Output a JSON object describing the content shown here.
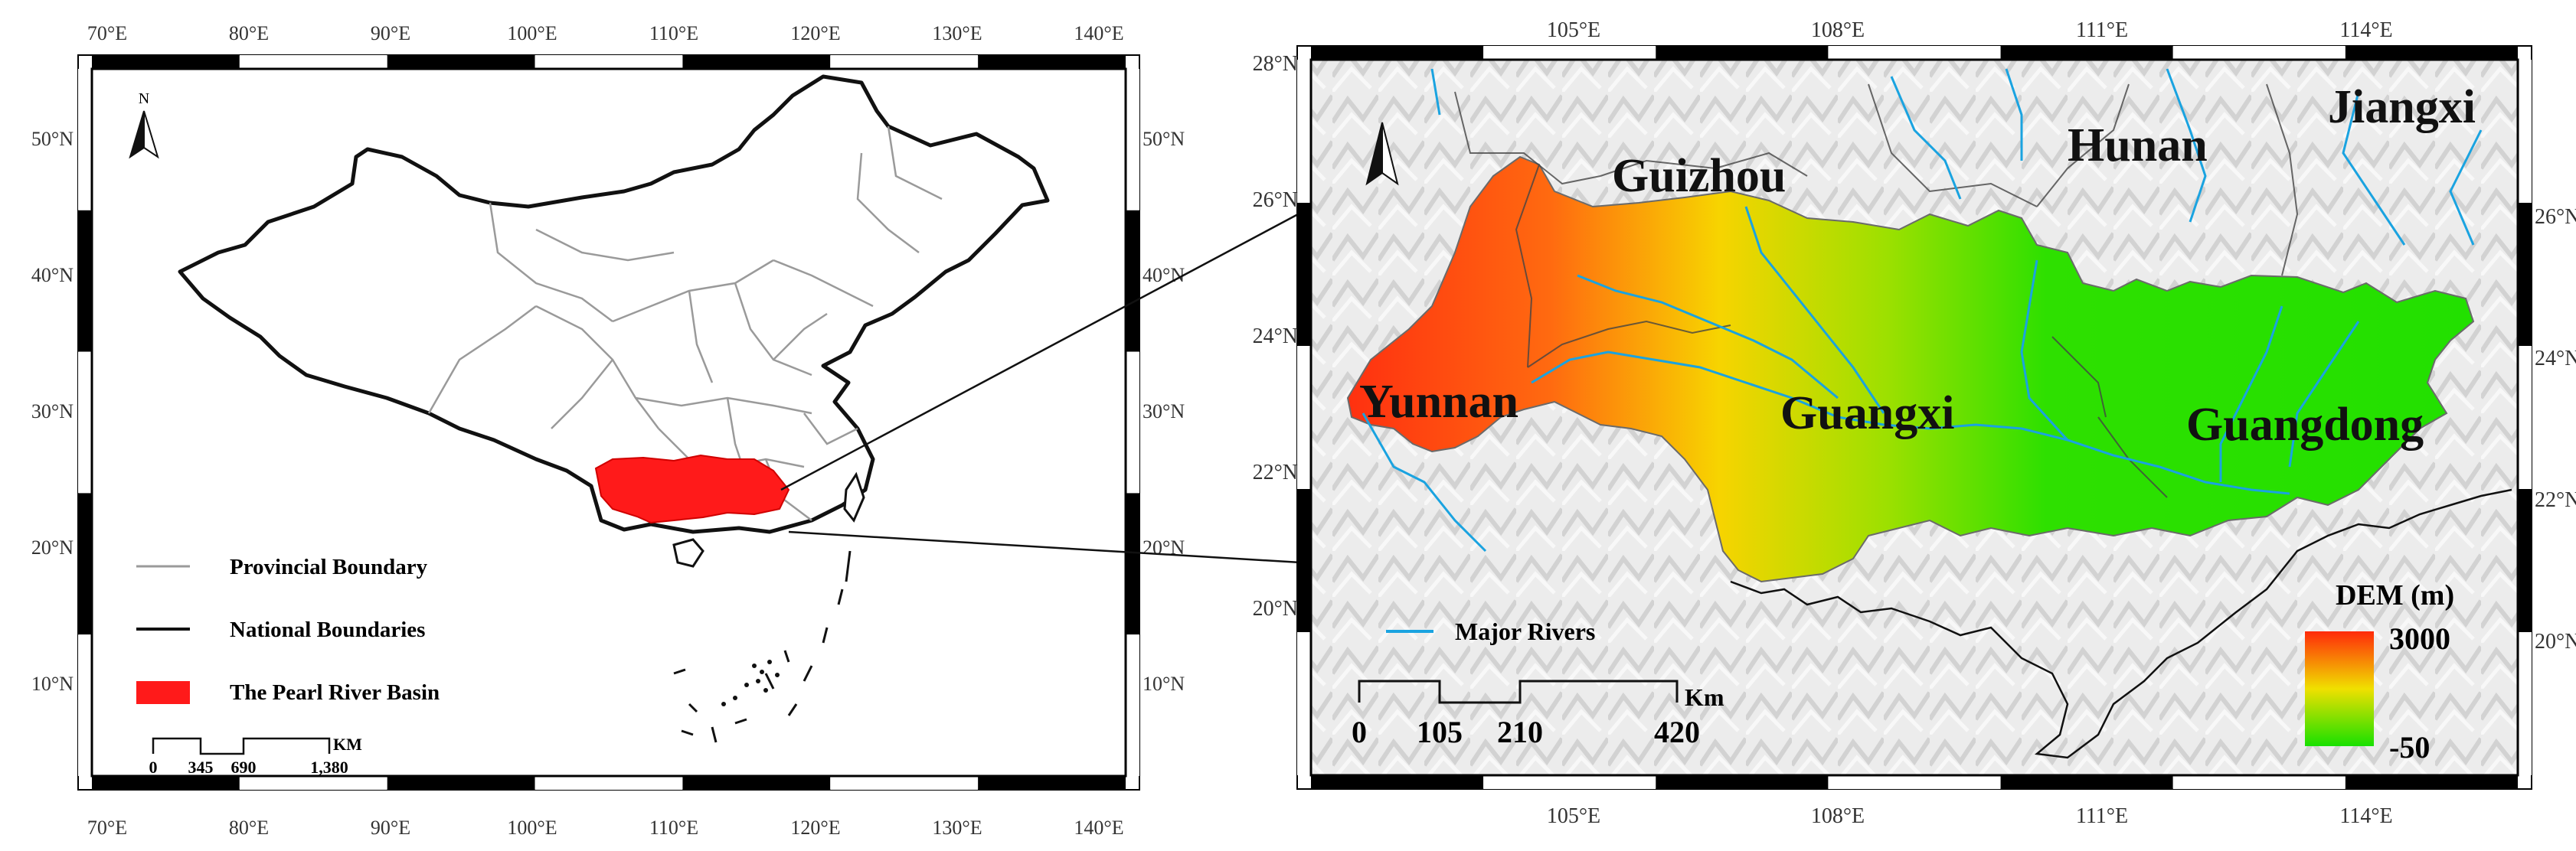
{
  "left_map": {
    "top_lon_labels": [
      "70°E",
      "80°E",
      "90°E",
      "100°E",
      "110°E",
      "120°E",
      "130°E",
      "140°E"
    ],
    "bottom_lon_labels": [
      "70°E",
      "80°E",
      "90°E",
      "100°E",
      "110°E",
      "120°E",
      "130°E",
      "140°E"
    ],
    "left_lat_labels": [
      "50°N",
      "40°N",
      "30°N",
      "20°N",
      "10°N"
    ],
    "right_lat_labels": [
      "50°N",
      "40°N",
      "30°N",
      "20°N",
      "10°N"
    ],
    "north_label": "N",
    "legend": {
      "provincial": "Provincial Boundary",
      "national": "National Boundaries",
      "basin": "The Pearl River Basin"
    },
    "scale": {
      "unit": "KM",
      "ticks": [
        "0",
        "345",
        "690",
        "1,380"
      ]
    },
    "colors": {
      "basin": "#ff1a1a",
      "provincial": "#9a9a9a",
      "national": "#111111"
    }
  },
  "right_map": {
    "top_lon_labels": [
      "105°E",
      "108°E",
      "111°E",
      "114°E"
    ],
    "bottom_lon_labels": [
      "105°E",
      "108°E",
      "111°E",
      "114°E"
    ],
    "left_lat_labels": [
      "28°N",
      "26°N",
      "24°N",
      "22°N",
      "20°N"
    ],
    "right_lat_labels": [
      "26°N",
      "24°N",
      "22°N",
      "20°N"
    ],
    "regions": {
      "guizhou": "Guizhou",
      "hunan": "Hunan",
      "jiangxi": "Jiangxi",
      "yunnan": "Yunnan",
      "guangxi": "Guangxi",
      "guangdong": "Guangdong"
    },
    "rivers_legend": "Major Rivers",
    "scale": {
      "unit": "Km",
      "ticks": [
        "0",
        "105",
        "210",
        "420"
      ]
    },
    "dem": {
      "title": "DEM (m)",
      "max": "3000",
      "min": "-50"
    },
    "colors": {
      "river": "#1aa3e0",
      "dem_high": "#ff2a0a",
      "dem_mid": "#f0e000",
      "dem_low": "#18e000"
    }
  }
}
